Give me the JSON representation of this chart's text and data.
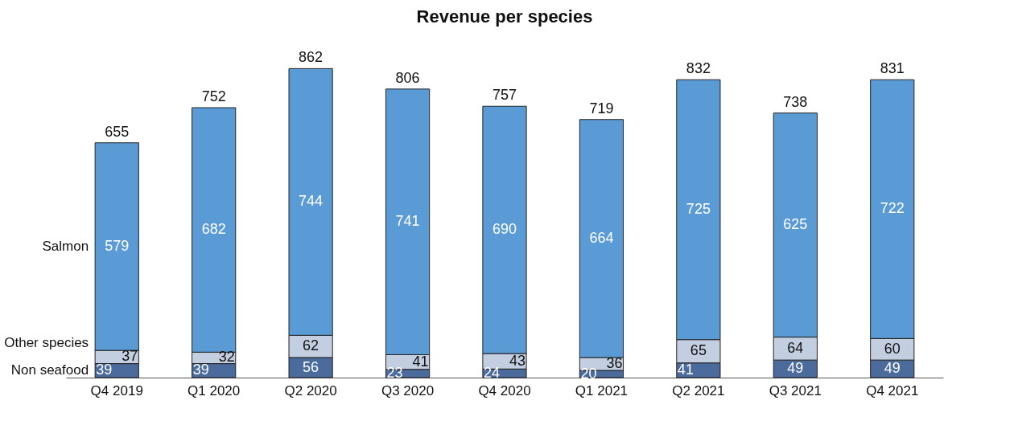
{
  "chart_data": {
    "type": "bar",
    "title": "Revenue per species",
    "stacked": true,
    "data_labels": true,
    "categories": [
      "Q4 2019",
      "Q1 2020",
      "Q2 2020",
      "Q3 2020",
      "Q4 2020",
      "Q1 2021",
      "Q2 2021",
      "Q3 2021",
      "Q4 2021"
    ],
    "series": [
      {
        "name": "Non seafood",
        "color": "#4a6b9c",
        "values": [
          39,
          39,
          56,
          23,
          24,
          20,
          41,
          49,
          49
        ]
      },
      {
        "name": "Other species",
        "color": "#c3cfe0",
        "values": [
          37,
          32,
          62,
          41,
          43,
          36,
          65,
          64,
          60
        ]
      },
      {
        "name": "Salmon",
        "color": "#5b9bd5",
        "values": [
          579,
          682,
          744,
          741,
          690,
          664,
          725,
          625,
          722
        ]
      }
    ],
    "totals": [
      "655",
      "752",
      "862",
      "806",
      "757",
      "719",
      "832",
      "738",
      "831"
    ]
  }
}
